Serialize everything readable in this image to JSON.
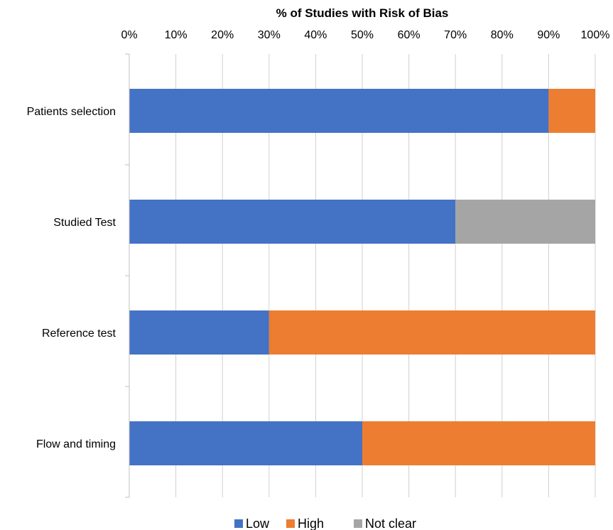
{
  "chart_data": {
    "type": "bar",
    "orientation": "horizontal",
    "stacked": true,
    "title": "% of Studies with Risk of Bias",
    "xlabel": "% of Studies with Risk of Bias",
    "ylabel": "",
    "xlim": [
      0,
      100
    ],
    "x_ticks": [
      "0%",
      "10%",
      "20%",
      "30%",
      "40%",
      "50%",
      "60%",
      "70%",
      "80%",
      "90%",
      "100%"
    ],
    "x_axis_position": "top",
    "grid": true,
    "legend_position": "bottom",
    "categories": [
      "Patients selection",
      "Studied Test",
      "Reference test",
      "Flow and timing"
    ],
    "series": [
      {
        "name": "Low",
        "color": "#4472C4",
        "values": [
          90,
          70,
          30,
          50
        ]
      },
      {
        "name": "High",
        "color": "#ED7D31",
        "values": [
          10,
          0,
          70,
          50
        ]
      },
      {
        "name": "Not clear",
        "color": "#A5A5A5",
        "values": [
          0,
          30,
          0,
          0
        ]
      }
    ]
  }
}
